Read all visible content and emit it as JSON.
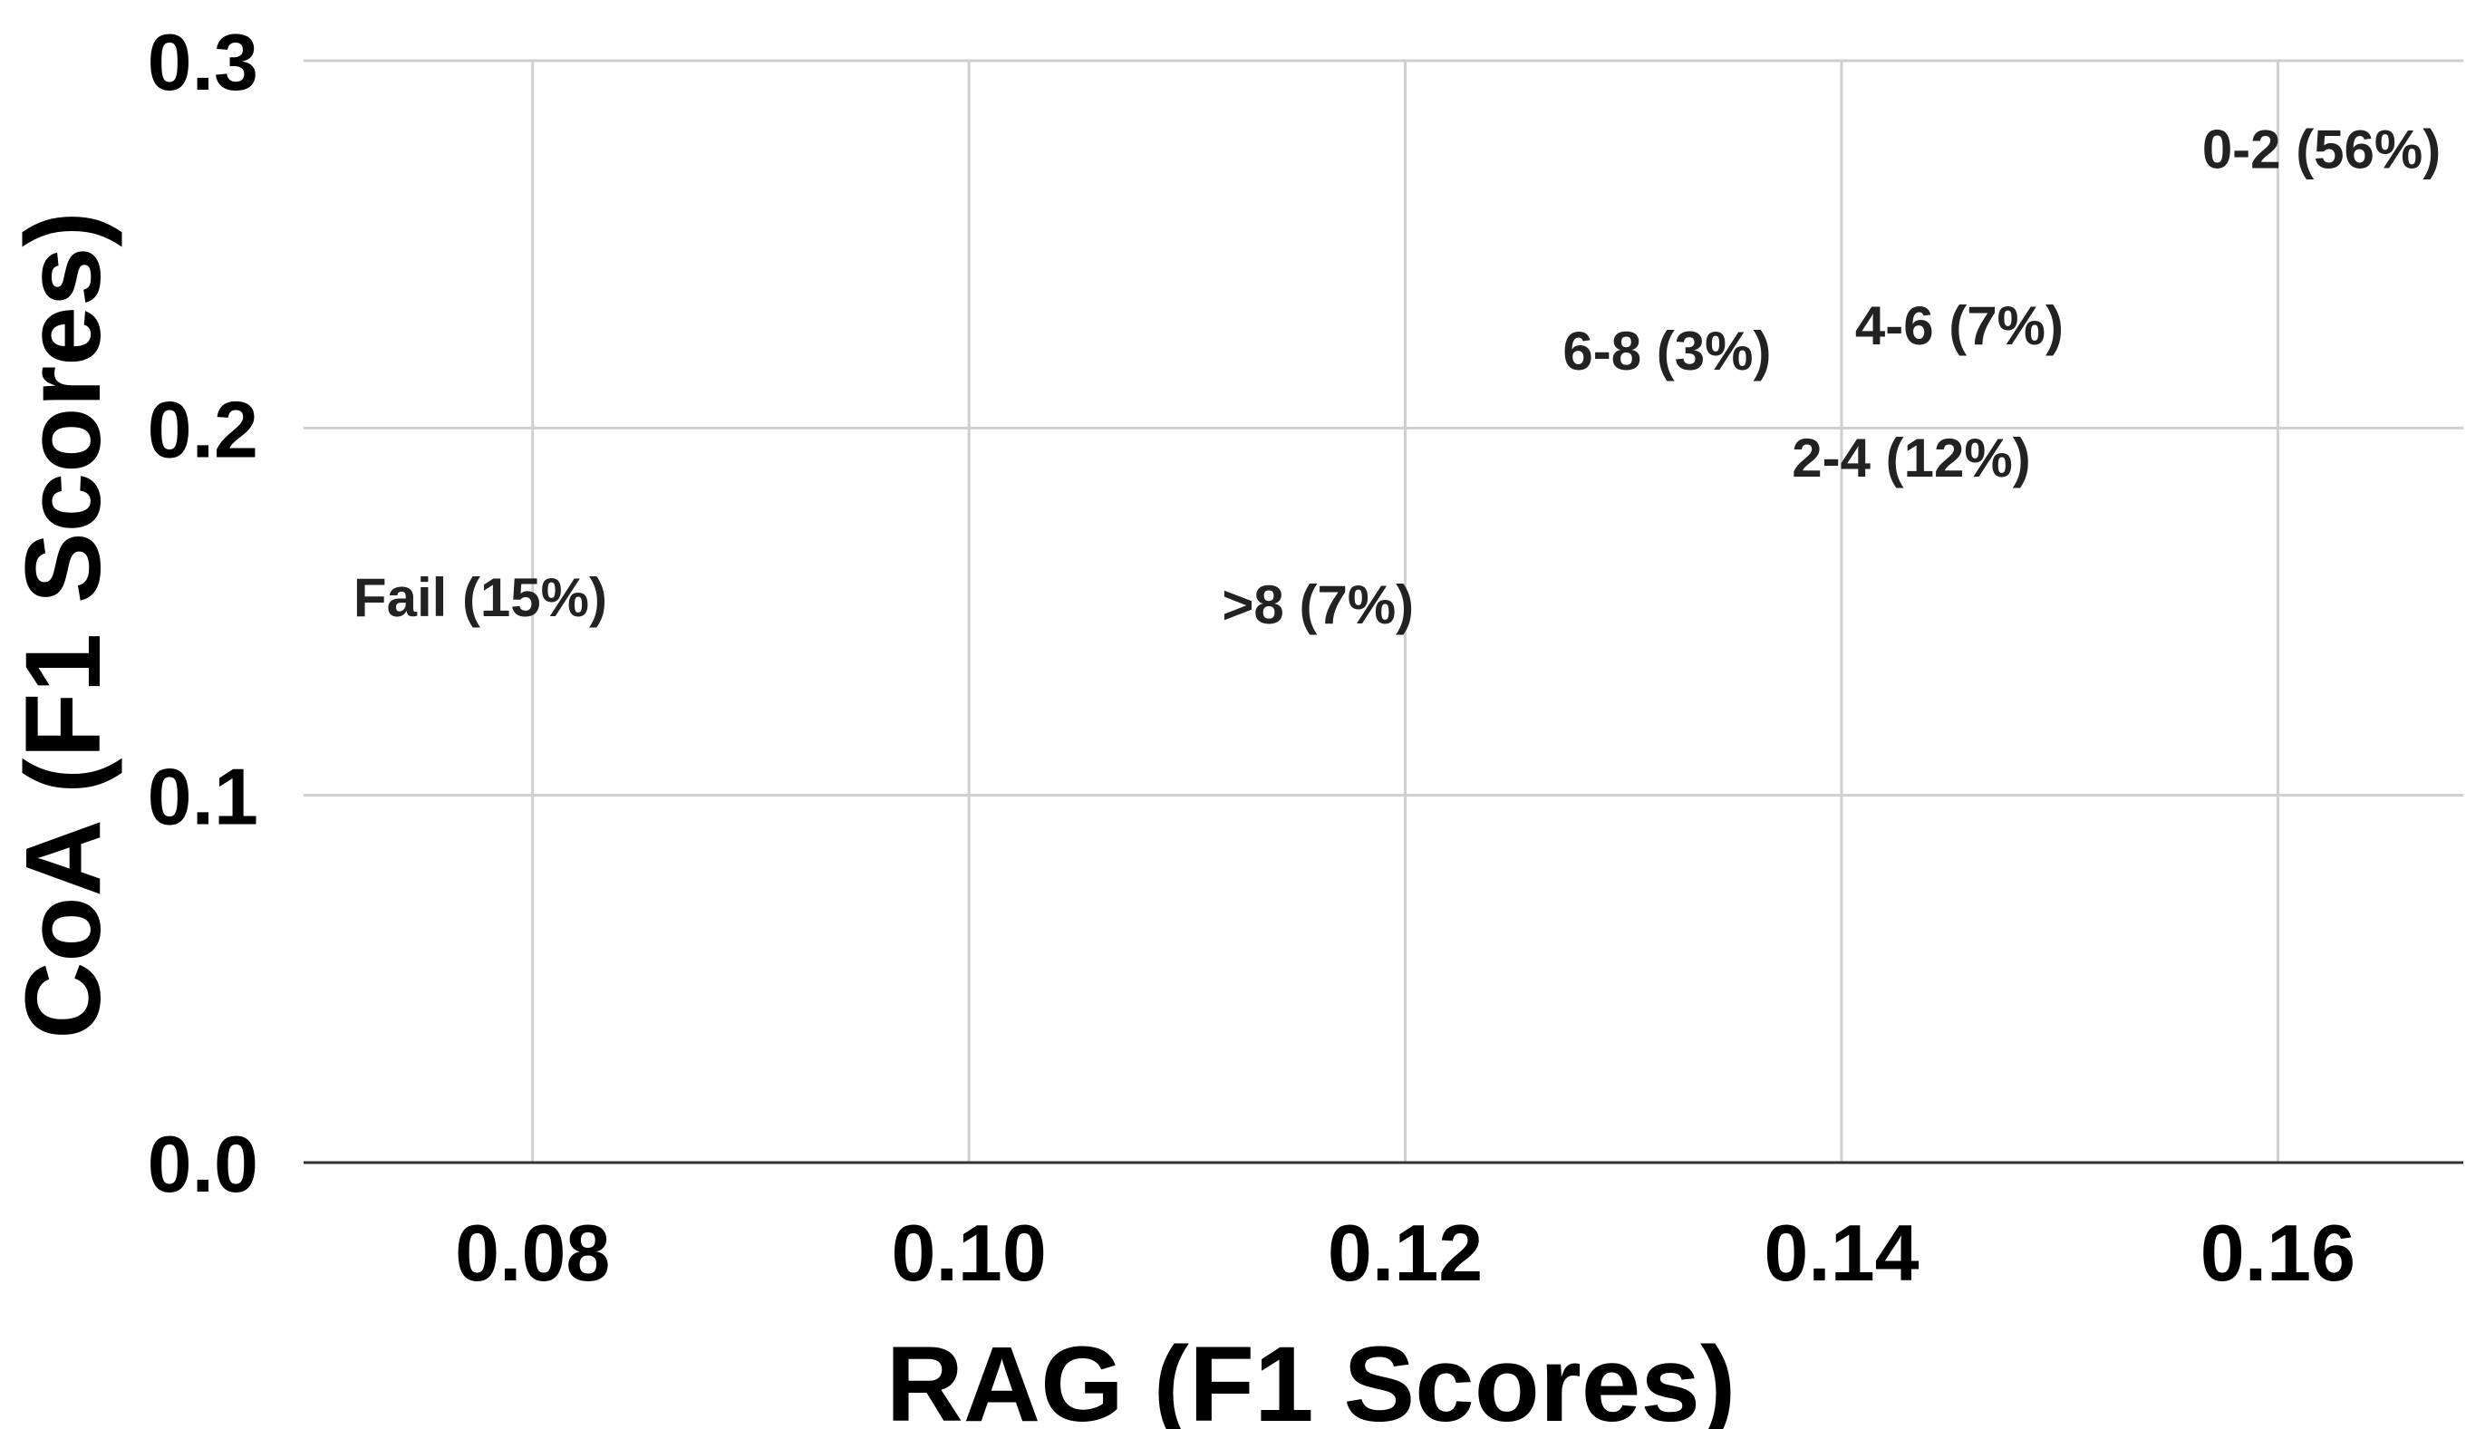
{
  "chart_data": {
    "type": "scatter",
    "title": "",
    "xlabel": "RAG (F1 Scores)",
    "ylabel": "CoA (F1 Scores)",
    "xlim": [
      0.0695,
      0.1685
    ],
    "ylim": [
      0.0,
      0.3
    ],
    "x_ticks": [
      {
        "value": 0.08,
        "label": "0.08"
      },
      {
        "value": 0.1,
        "label": "0.10"
      },
      {
        "value": 0.12,
        "label": "0.12"
      },
      {
        "value": 0.14,
        "label": "0.14"
      },
      {
        "value": 0.16,
        "label": "0.16"
      }
    ],
    "y_ticks": [
      {
        "value": 0.0,
        "label": "0.0"
      },
      {
        "value": 0.1,
        "label": "0.1"
      },
      {
        "value": 0.2,
        "label": "0.2"
      },
      {
        "value": 0.3,
        "label": "0.3"
      }
    ],
    "grid": true,
    "points": [
      {
        "label": "0-2 (56%)",
        "x": 0.162,
        "y": 0.276
      },
      {
        "label": "2-4 (12%)",
        "x": 0.1432,
        "y": 0.192
      },
      {
        "label": "4-6 (7%)",
        "x": 0.1454,
        "y": 0.228
      },
      {
        "label": "6-8 (3%)",
        "x": 0.132,
        "y": 0.221
      },
      {
        "label": ">8 (7%)",
        "x": 0.116,
        "y": 0.152
      },
      {
        "label": "Fail (15%)",
        "x": 0.0776,
        "y": 0.154
      }
    ]
  }
}
